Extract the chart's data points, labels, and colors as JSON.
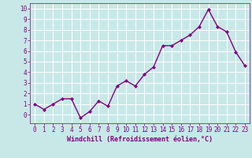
{
  "x": [
    0,
    1,
    2,
    3,
    4,
    5,
    6,
    7,
    8,
    9,
    10,
    11,
    12,
    13,
    14,
    15,
    16,
    17,
    18,
    19,
    20,
    21,
    22,
    23
  ],
  "y": [
    1.0,
    0.5,
    1.0,
    1.5,
    1.5,
    -0.3,
    0.3,
    1.3,
    0.8,
    2.7,
    3.2,
    2.7,
    3.8,
    4.5,
    6.5,
    6.5,
    7.0,
    7.5,
    8.3,
    9.9,
    8.3,
    7.8,
    5.9,
    4.6
  ],
  "line_color": "#800080",
  "marker": "D",
  "marker_size": 2.0,
  "bg_color": "#c8e8e8",
  "grid_color": "#ffffff",
  "xlabel": "Windchill (Refroidissement éolien,°C)",
  "xlabel_color": "#800080",
  "tick_color": "#800080",
  "xlim": [
    -0.5,
    23.5
  ],
  "ylim": [
    -0.8,
    10.5
  ],
  "yticks": [
    0,
    1,
    2,
    3,
    4,
    5,
    6,
    7,
    8,
    9,
    10
  ],
  "xticks": [
    0,
    1,
    2,
    3,
    4,
    5,
    6,
    7,
    8,
    9,
    10,
    11,
    12,
    13,
    14,
    15,
    16,
    17,
    18,
    19,
    20,
    21,
    22,
    23
  ],
  "line_width": 1.0,
  "tick_fontsize": 5.5,
  "xlabel_fontsize": 6.0
}
